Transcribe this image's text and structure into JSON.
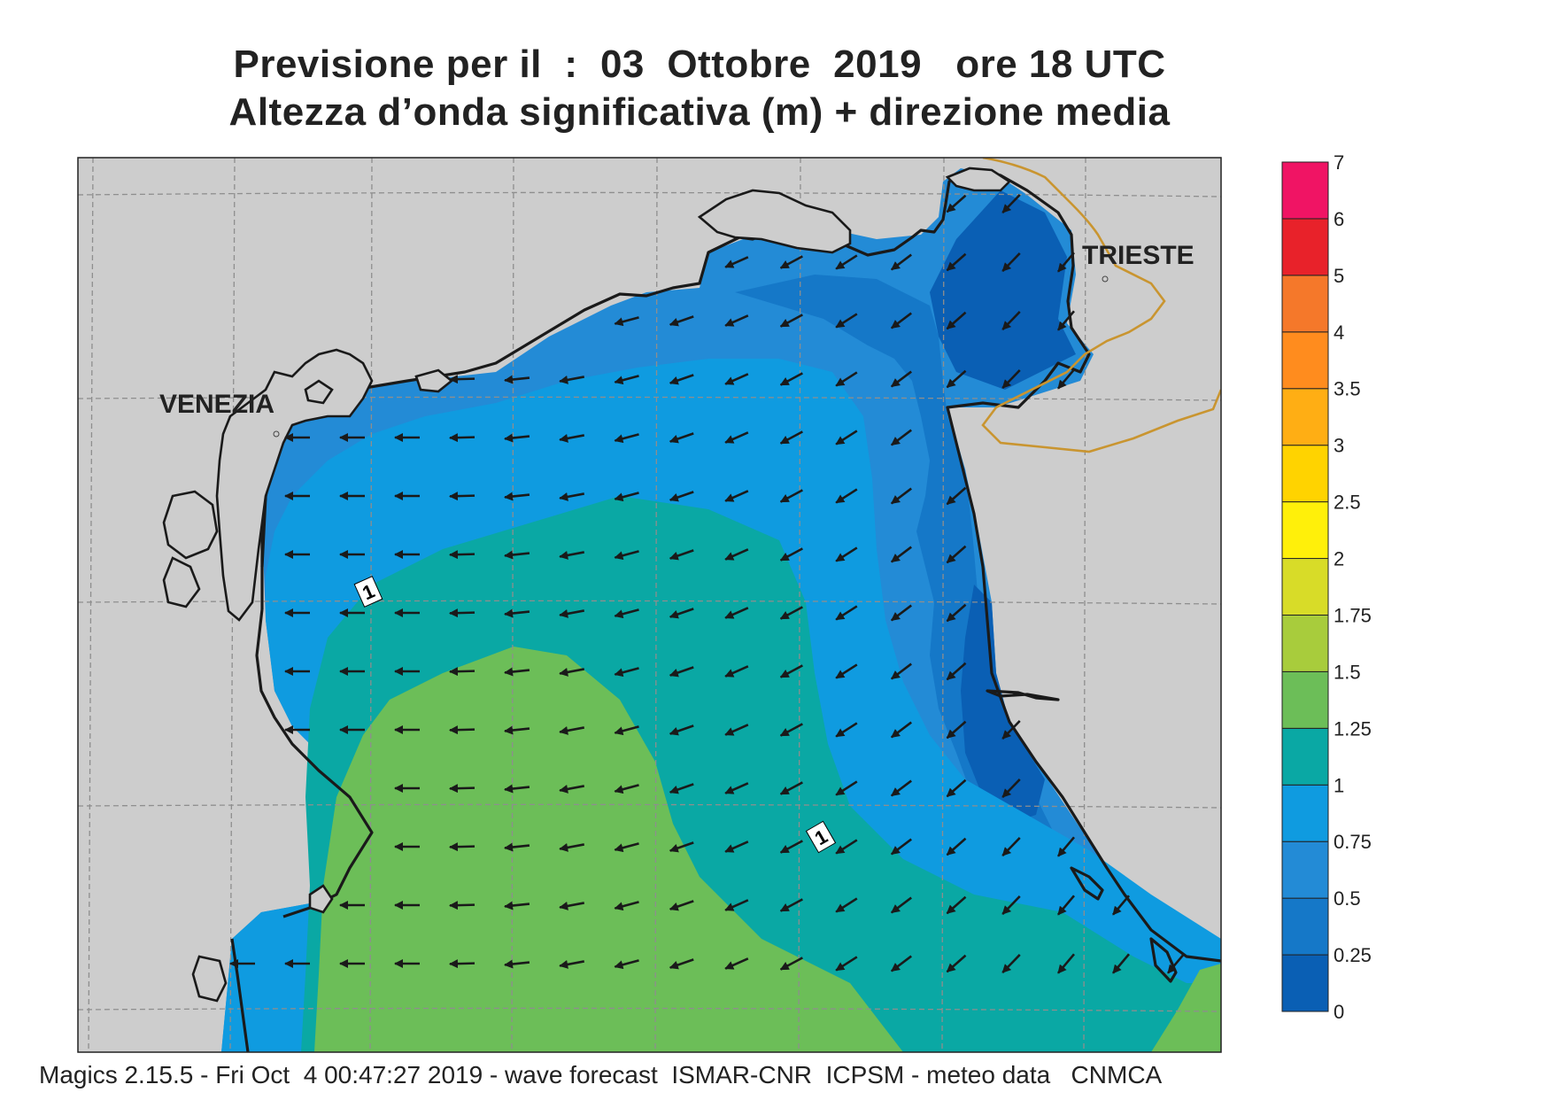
{
  "title": {
    "line1": "Previsione per il  :  03  Ottobre  2019   ore 18 UTC",
    "line2": "Altezza d’onda significativa (m) + direzione media"
  },
  "places": [
    "VENEZIA",
    "TRIESTE"
  ],
  "contour_label": "1",
  "colorbar": {
    "levels": [
      "0",
      "0.25",
      "0.5",
      "0.75",
      "1",
      "1.25",
      "1.5",
      "1.75",
      "2",
      "2.5",
      "3",
      "3.5",
      "4",
      "5",
      "6",
      "7"
    ],
    "colors": [
      "#0a5fb4",
      "#1578c8",
      "#238bd6",
      "#0f9be0",
      "#0aa8a4",
      "#6cbe58",
      "#a8cc3c",
      "#d8dc28",
      "#fff00a",
      "#ffd300",
      "#ffae14",
      "#ff8c1e",
      "#f5782a",
      "#e8222a",
      "#f01464"
    ]
  },
  "colors": {
    "land": "#cdcdcd",
    "coast": "#1a1a1a",
    "border": "#c99530",
    "grid": "#8e8e8e",
    "arrow": "#1a1a1a"
  },
  "footer": "Magics 2.15.5 - Fri Oct  4 00:47:27 2019 - wave forecast  ISMAR-CNR  ICPSM - meteo data   CNMCA"
}
